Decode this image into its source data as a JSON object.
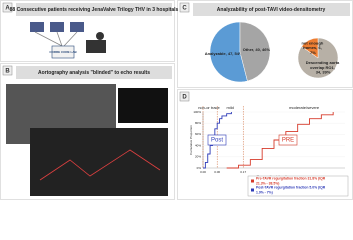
{
  "panels": {
    "a": {
      "letter": "A",
      "text": "88 Consecutive patients receiving JenaValve Trilogy THV in 3 hospitals",
      "lab": "CORRE CORE LAB"
    },
    "b": {
      "letter": "B",
      "text": "Aortography analysis \"blinded\" to echo results"
    },
    "c": {
      "letter": "C"
    },
    "d": {
      "letter": "D"
    }
  },
  "chart_data": [
    {
      "type": "pie",
      "title": "Analyzability of post-TAVI video-densitometry",
      "categories": [
        "Analyzable, 47, 54%",
        "Other, 40, 46%"
      ],
      "values": [
        54,
        46
      ],
      "colors": [
        "#5b9bd5",
        "#a5a5a5"
      ]
    },
    {
      "type": "pie",
      "categories": [
        "Descending aorta overlap RO1, 34, 39%",
        "not enough frames, 6, 7%"
      ],
      "values": [
        39,
        7
      ],
      "colors": [
        "#b7b0a6",
        "#ed7d31"
      ]
    },
    {
      "type": "line",
      "step": true,
      "x_label": "Regurgitant fraction",
      "y_label": "Cumulative Proportion",
      "regions": [
        "non-or trace",
        "mild",
        "moderate/severe"
      ],
      "xlim": [
        0,
        0.6
      ],
      "xticks": [
        {
          "value": 0,
          "label": "0.00"
        },
        0.06,
        0.17
      ],
      "ylim": [
        0,
        1
      ],
      "yticks": [
        {
          "value": 0,
          "label": "0%"
        },
        {
          "value": 0.2,
          "label": "20%"
        },
        {
          "value": 0.4,
          "label": "40%"
        },
        {
          "value": 0.6,
          "label": "60%"
        },
        {
          "value": 0.8,
          "label": "80%"
        },
        {
          "value": 1,
          "label": "100%"
        }
      ],
      "series": [
        {
          "name": "Post",
          "color": "#2e3bb8",
          "x": [
            0,
            0.01,
            0.02,
            0.03,
            0.04,
            0.05,
            0.06,
            0.07,
            0.08,
            0.1,
            0.12
          ],
          "values": [
            0,
            0.1,
            0.25,
            0.4,
            0.55,
            0.7,
            0.8,
            0.88,
            0.93,
            0.97,
            1
          ]
        },
        {
          "name": "PRE",
          "color": "#d63a2a",
          "x": [
            0.1,
            0.15,
            0.2,
            0.25,
            0.3,
            0.35,
            0.4,
            0.45,
            0.5,
            0.55
          ],
          "values": [
            0,
            0.05,
            0.15,
            0.35,
            0.5,
            0.65,
            0.78,
            0.88,
            0.95,
            1
          ]
        }
      ],
      "legend": [
        "Pre-TAVR regurgitation fraction 31.8% (IQR 21.3% - 38.5%)",
        "Post-TAVR regurgitation fraction 5.0% (IQR 1.9% - 7%)"
      ]
    }
  ]
}
